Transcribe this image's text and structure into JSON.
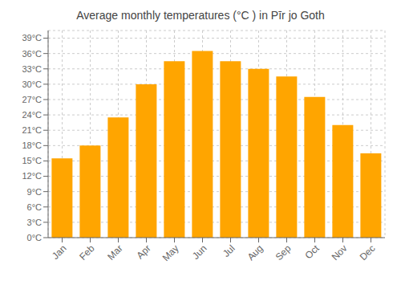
{
  "chart_data": {
    "type": "bar",
    "title": "Average monthly temperatures (°C ) in Pīr jo Goth",
    "categories": [
      "Jan",
      "Feb",
      "Mar",
      "Apr",
      "May",
      "Jun",
      "Jul",
      "Aug",
      "Sep",
      "Oct",
      "Nov",
      "Dec"
    ],
    "values": [
      15.5,
      18.0,
      23.5,
      30.0,
      34.5,
      36.5,
      34.5,
      33.0,
      31.5,
      27.5,
      22.0,
      16.5
    ],
    "color": "#FFA500",
    "ylim": [
      0,
      40.5
    ],
    "yticks": [
      {
        "value": 0,
        "label": "0°C"
      },
      {
        "value": 3,
        "label": "3°C"
      },
      {
        "value": 6,
        "label": "6°C"
      },
      {
        "value": 9,
        "label": "9°C"
      },
      {
        "value": 12,
        "label": "12°C"
      },
      {
        "value": 15,
        "label": "15°C"
      },
      {
        "value": 18,
        "label": "18°C"
      },
      {
        "value": 21,
        "label": "21°C"
      },
      {
        "value": 24,
        "label": "24°C"
      },
      {
        "value": 27,
        "label": "27°C"
      },
      {
        "value": 30,
        "label": "30°C"
      },
      {
        "value": 33,
        "label": "33°C"
      },
      {
        "value": 36,
        "label": "36°C"
      },
      {
        "value": 39,
        "label": "39°C"
      }
    ],
    "grid": true
  }
}
